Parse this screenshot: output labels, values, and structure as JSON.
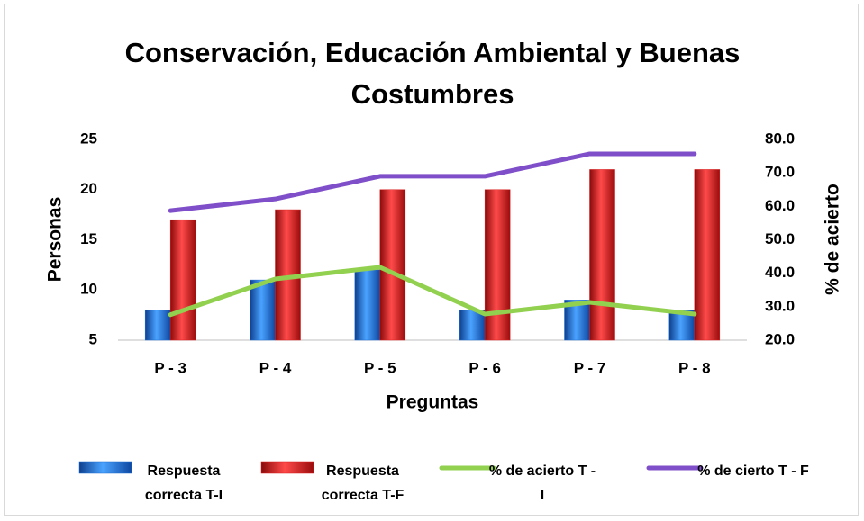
{
  "chart_data": {
    "type": "bar-line",
    "title": "Conservación, Educación Ambiental y Buenas Costumbres",
    "x_label": "Preguntas",
    "y_label": "Personas",
    "y2_label": "% de acierto",
    "categories": [
      "P - 3",
      "P - 4",
      "P - 5",
      "P - 6",
      "P - 7",
      "P - 8"
    ],
    "series": [
      {
        "name": "Respuesta correcta T-I",
        "type": "bar",
        "color": "#1f6fd1",
        "values": [
          8,
          11,
          12,
          8,
          9,
          8
        ]
      },
      {
        "name": "Respuesta correcta T-F",
        "type": "bar",
        "color": "#d91c1c",
        "values": [
          17,
          18,
          20,
          20,
          22,
          22
        ]
      },
      {
        "name": "% de acierto T - I",
        "type": "line",
        "axis": "y2",
        "color": "#92d050",
        "values": [
          27.6,
          38.3,
          41.8,
          27.8,
          31.3,
          27.8
        ]
      },
      {
        "name": "% de cierto T - F",
        "type": "line",
        "axis": "y2",
        "color": "#7f4fc9",
        "values": [
          58.7,
          62.2,
          69.0,
          69.0,
          75.7,
          75.7
        ]
      }
    ],
    "ylim": [
      5,
      25
    ],
    "yticks": [
      5,
      10,
      15,
      20,
      25
    ],
    "y2lim": [
      20,
      80
    ],
    "y2ticks": [
      {
        "value": 20,
        "label": "20.0"
      },
      {
        "value": 30,
        "label": "30.0"
      },
      {
        "value": 40,
        "label": "40.0"
      },
      {
        "value": 50,
        "label": "50.0"
      },
      {
        "value": 60,
        "label": "60.0"
      },
      {
        "value": 70,
        "label": "70.0"
      },
      {
        "value": 80,
        "label": "80.0"
      }
    ],
    "grid": false,
    "legend": "bottom"
  }
}
